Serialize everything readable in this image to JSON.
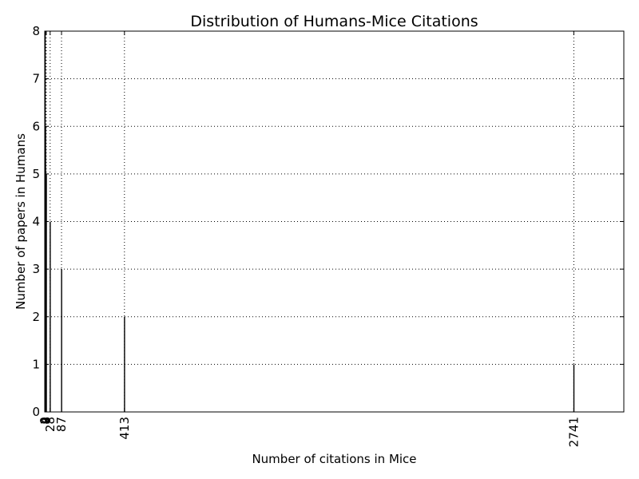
{
  "chart_data": {
    "type": "bar",
    "title": "Distribution of Humans-Mice Citations",
    "xlabel": "Number of citations in Mice",
    "ylabel": "Number of papers in Humans",
    "xlim": [
      0,
      3000
    ],
    "ylim": [
      0,
      8
    ],
    "grid": true,
    "legend": "none",
    "x_ticks": [
      0,
      2,
      4,
      8,
      28,
      87,
      413,
      2741
    ],
    "x_tick_labels": [
      "0",
      "2",
      "4",
      "8",
      "28",
      "87",
      "413",
      "2741"
    ],
    "y_ticks": [
      0,
      1,
      2,
      3,
      4,
      5,
      6,
      7,
      8
    ],
    "y_tick_labels": [
      "0",
      "1",
      "2",
      "3",
      "4",
      "5",
      "6",
      "7",
      "8"
    ],
    "bars": [
      {
        "x": 2,
        "value": 8
      },
      {
        "x": 4,
        "value": 6
      },
      {
        "x": 8,
        "value": 5
      },
      {
        "x": 28,
        "value": 4
      },
      {
        "x": 87,
        "value": 3
      },
      {
        "x": 413,
        "value": 2
      },
      {
        "x": 2741,
        "value": 1
      }
    ],
    "colors": {
      "bar": "#000000",
      "axes": "#000000",
      "background": "#ffffff"
    }
  }
}
